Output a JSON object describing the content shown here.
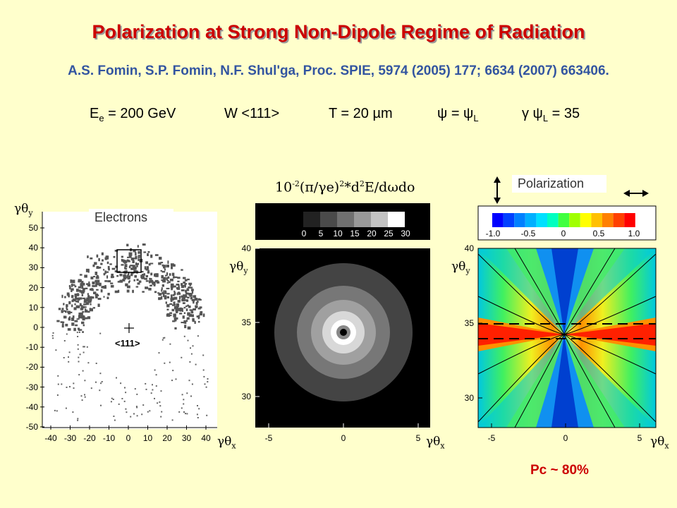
{
  "title": "Polarization at Strong Non-Dipole Regime of Radiation",
  "authors": "A.S. Fomin, S.P. Fomin, N.F. Shul'ga, Proc. SPIE, 5974 (2005) 177; 6634 (2007) 663406.",
  "params": {
    "energy": "E",
    "energy_sub": "e",
    "energy_val": "= 200 GeV",
    "crystal": "W <111>",
    "thickness": "T = 20 µm",
    "psi": "ψ = ψ",
    "psi_sub": "L",
    "gpsi": "γ ψ",
    "gpsi_sub": "L",
    "gpsi_val": "= 35"
  },
  "panel_left": {
    "label": "Electrons",
    "ylabel": "γθ",
    "ylabel_sub": "y",
    "xlabel": "γθ",
    "xlabel_sub": "x",
    "yticks": [
      "50",
      "40",
      "30",
      "20",
      "10",
      "0",
      "-10",
      "-20",
      "-30",
      "-40",
      "-50"
    ],
    "xticks": [
      "-40",
      "-30",
      "-20",
      "-10",
      "0",
      "10",
      "20",
      "30",
      "40"
    ],
    "center_label": "<111>"
  },
  "panel_middle": {
    "formula_a": "10",
    "formula_a_sup": "-2",
    "formula_b": "(π/γe)",
    "formula_b_sup": "2",
    "formula_c": "*d",
    "formula_c_sup": "2",
    "formula_d": "E/dωdo",
    "colorbar_ticks": [
      "0",
      "5",
      "10",
      "15",
      "20",
      "25",
      "30"
    ],
    "yticks": [
      "40",
      "35",
      "30"
    ],
    "xticks": [
      "-5",
      "0",
      "5"
    ],
    "ylabel": "γθ",
    "ylabel_sub": "y",
    "xlabel": "γθ",
    "xlabel_sub": "x"
  },
  "panel_right": {
    "label": "Polarization",
    "colorbar_ticks": [
      "-1.0",
      "-0.5",
      "0",
      "0.5",
      "1.0"
    ],
    "yticks": [
      "40",
      "35",
      "30"
    ],
    "xticks": [
      "-5",
      "0",
      "5"
    ],
    "ylabel": "γθ",
    "ylabel_sub": "y",
    "xlabel": "γθ",
    "xlabel_sub": "x"
  },
  "pc_text": "Pc ~ 80%",
  "colors": {
    "title": "#cc0000",
    "authors": "#3355a0",
    "background": "#ffffcc"
  }
}
